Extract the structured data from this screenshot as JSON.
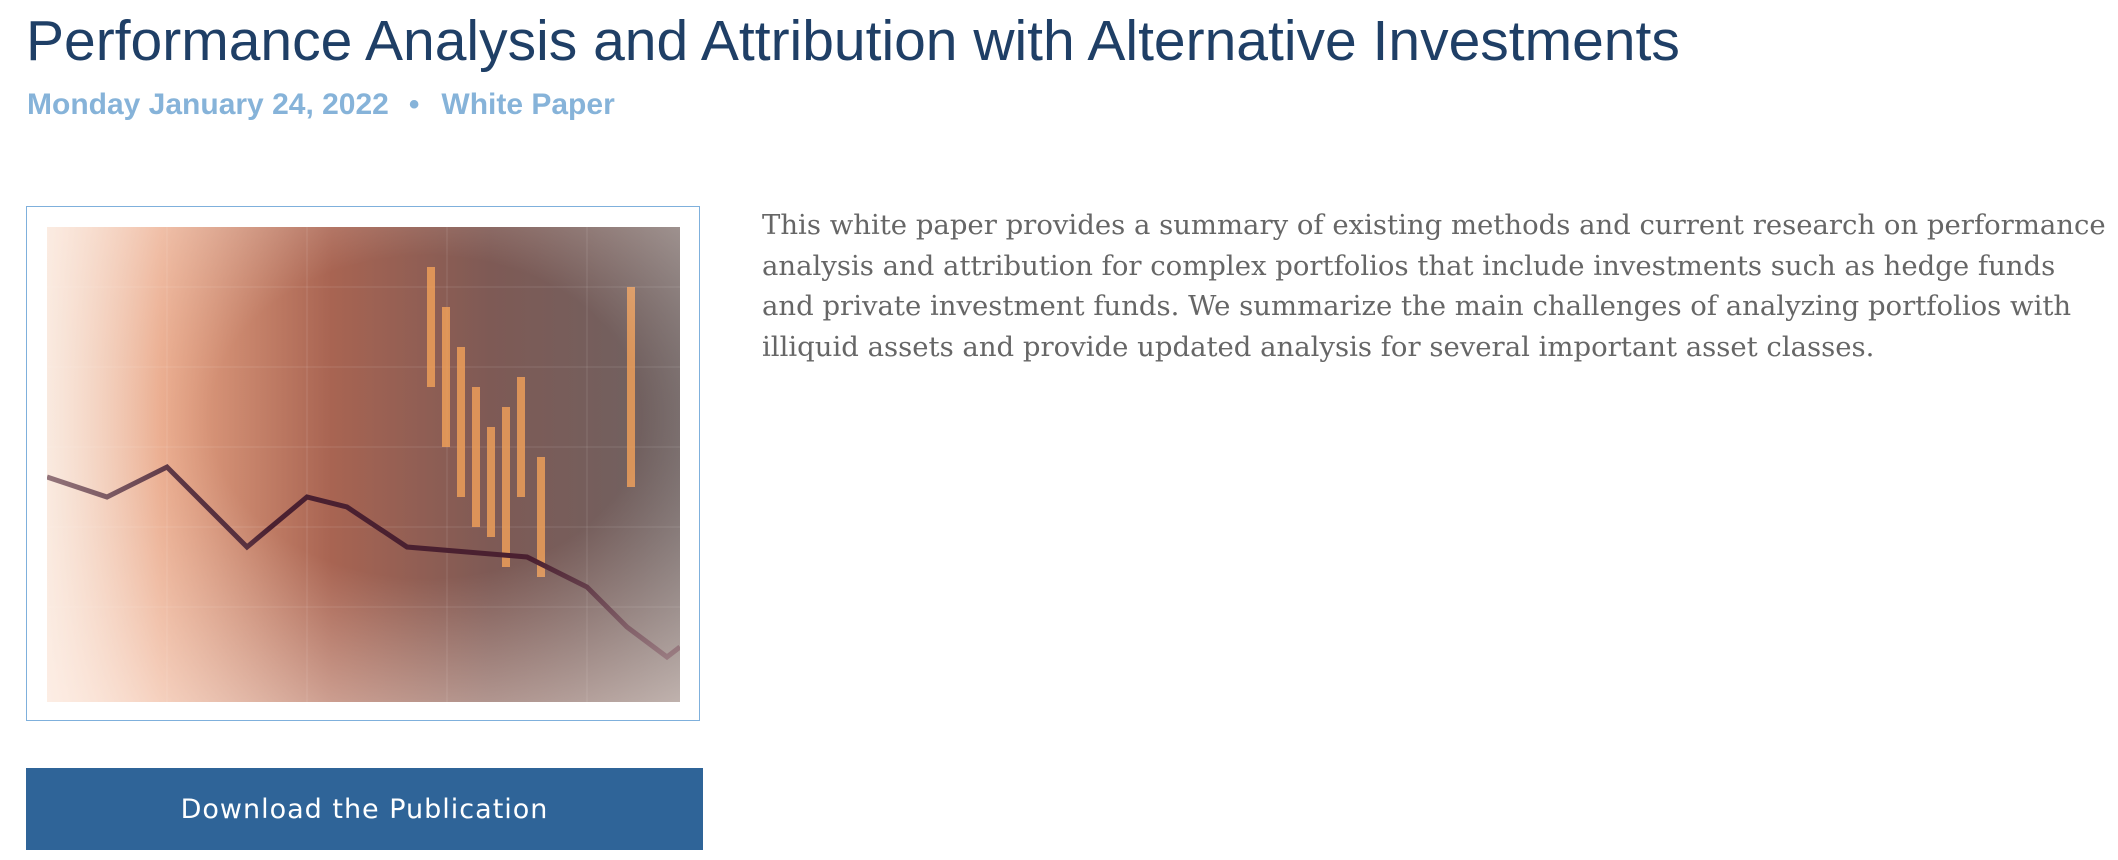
{
  "header": {
    "title": "Performance Analysis and Attribution with Alternative Investments",
    "date": "Monday January 24, 2022",
    "separator": "•",
    "category": "White Paper"
  },
  "summary": "This white paper provides a summary of existing methods and current research on performance analysis and attribution for complex portfolios that include investments such as hedge funds and private investment funds. We summarize the main challenges of analyzing portfolios with illiquid assets and provide updated analysis for several important asset classes.",
  "button": {
    "label": "Download the Publication"
  }
}
